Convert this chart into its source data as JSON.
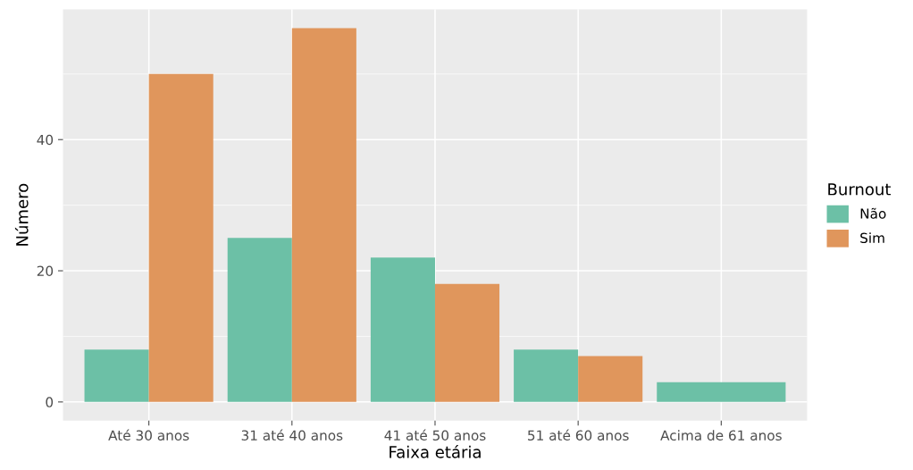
{
  "chart_data": {
    "type": "bar",
    "xlabel": "Faixa etária",
    "ylabel": "Número",
    "legend_title": "Burnout",
    "categories": [
      "Até 30 anos",
      "31 até 40 anos",
      "41 até 50 anos",
      "51 até 60 anos",
      "Acima de 61 anos"
    ],
    "series": [
      {
        "name": "Não",
        "color": "#6cc0a6",
        "values": [
          8,
          25,
          22,
          8,
          3
        ]
      },
      {
        "name": "Sim",
        "color": "#e0965c",
        "values": [
          50,
          57,
          18,
          7,
          null
        ]
      }
    ],
    "ylim": [
      -2.85,
      59.85
    ],
    "yticks": [
      0,
      20,
      40
    ],
    "grid": true,
    "legend": "right"
  }
}
